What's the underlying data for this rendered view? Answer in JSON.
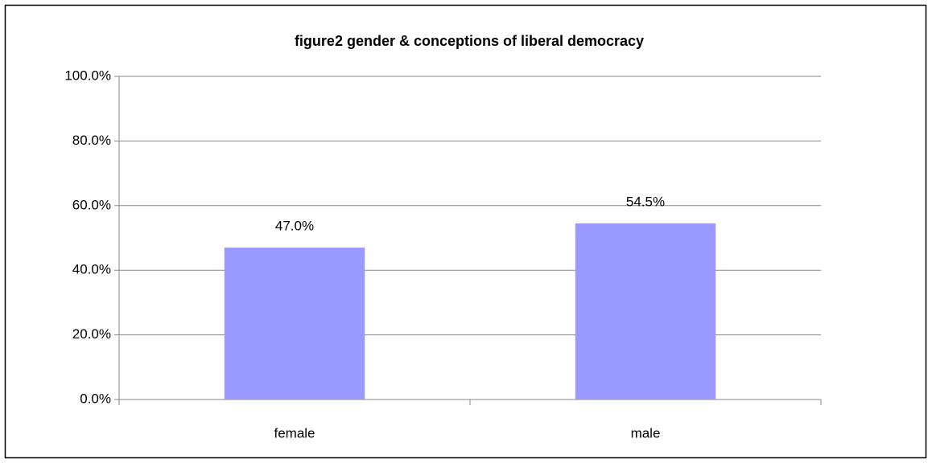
{
  "chart_data": {
    "type": "bar",
    "title": "figure2 gender & conceptions of liberal democracy",
    "categories": [
      "female",
      "male"
    ],
    "values": [
      47.0,
      54.5
    ],
    "value_labels": [
      "47.0%",
      "54.5%"
    ],
    "color": "#9999ff",
    "ylim": [
      0,
      100
    ],
    "yticks": [
      {
        "value": 0,
        "label": "0.0%"
      },
      {
        "value": 20,
        "label": "20.0%"
      },
      {
        "value": 40,
        "label": "40.0%"
      },
      {
        "value": 60,
        "label": "60.0%"
      },
      {
        "value": 80,
        "label": "80.0%"
      },
      {
        "value": 100,
        "label": "100.0%"
      }
    ],
    "grid": true
  }
}
